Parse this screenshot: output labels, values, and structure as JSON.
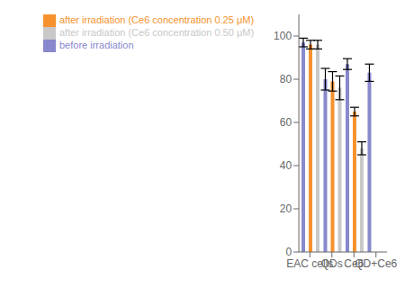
{
  "chart_data": {
    "type": "bar",
    "categories": [
      "EAC cells",
      "QDs",
      "Ce6",
      "QD+Ce6"
    ],
    "series": [
      {
        "name": "before irradiation",
        "color": "#8888cc",
        "values": [
          97,
          80,
          87,
          83
        ],
        "errors": [
          2.0,
          5.0,
          2.5,
          4.0
        ]
      },
      {
        "name": "after irradiation (Ce6 concentration  0.25 μM)",
        "color": "#f5922e",
        "values": [
          96,
          79,
          65,
          null
        ],
        "errors": [
          2.0,
          4.5,
          2.0,
          null
        ]
      },
      {
        "name": "after irradiation (Ce6 concentration  0.50 μM)",
        "color": "#c8c8c8",
        "values": [
          96,
          76,
          48,
          null
        ],
        "errors": [
          2.0,
          5.5,
          3.0,
          null
        ]
      }
    ],
    "ylim": [
      0,
      110
    ],
    "yticks": [
      0,
      20,
      40,
      60,
      80,
      100
    ],
    "legend": "upper left"
  }
}
